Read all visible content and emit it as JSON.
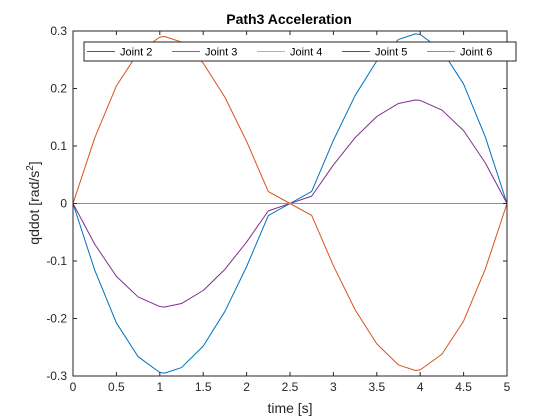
{
  "chart_data": {
    "type": "line",
    "title": "Path3 Acceleration",
    "xlabel": "time [s]",
    "ylabel_base": "qddot [rad/s",
    "ylabel_sup": "2",
    "ylabel_tail": "]",
    "xlim": [
      0,
      5
    ],
    "ylim": [
      -0.3,
      0.3
    ],
    "xticks": [
      0,
      0.5,
      1,
      1.5,
      2,
      2.5,
      3,
      3.5,
      4,
      4.5,
      5
    ],
    "xtick_labels": [
      "0",
      "0.5",
      "1",
      "1.5",
      "2",
      "2.5",
      "3",
      "3.5",
      "4",
      "4.5",
      "5"
    ],
    "yticks": [
      -0.3,
      -0.2,
      -0.1,
      0,
      0.1,
      0.2,
      0.3
    ],
    "ytick_labels": [
      "-0.3",
      "-0.2",
      "-0.1",
      "0",
      "0.1",
      "0.2",
      "0.3"
    ],
    "grid": false,
    "legend": "top, horizontal",
    "x": [
      0,
      0.25,
      0.5,
      0.75,
      1,
      1.0565,
      1.25,
      1.5,
      1.75,
      2,
      2.25,
      2.5,
      2.75,
      3,
      3.25,
      3.5,
      3.75,
      3.9435,
      4,
      4.25,
      4.5,
      4.75,
      5
    ],
    "series": [
      {
        "name": "Joint 2",
        "color": "#0072BD",
        "values": [
          0,
          -0.1158,
          -0.2077,
          -0.2664,
          -0.2939,
          -0.295,
          -0.2853,
          -0.248,
          -0.1877,
          -0.1098,
          -0.021,
          0,
          0.021,
          0.1098,
          0.1877,
          0.248,
          0.2853,
          0.295,
          0.2939,
          0.2664,
          0.2077,
          0.1158,
          0
        ]
      },
      {
        "name": "Joint 3",
        "color": "#D95319",
        "values": [
          0,
          0.114,
          0.2045,
          0.2622,
          0.2893,
          0.2904,
          0.2808,
          0.2441,
          0.1848,
          0.1081,
          0.0207,
          0,
          -0.0207,
          -0.1081,
          -0.1848,
          -0.2441,
          -0.2808,
          -0.2904,
          -0.2893,
          -0.2622,
          -0.2045,
          -0.114,
          0
        ]
      },
      {
        "name": "Joint 4",
        "color": "#EDB120",
        "values": [
          0,
          0,
          0,
          0,
          0,
          0,
          0,
          0,
          0,
          0,
          0,
          0,
          0,
          0,
          0,
          0,
          0,
          0,
          0,
          0,
          0,
          0,
          0
        ]
      },
      {
        "name": "Joint 5",
        "color": "#7E2F8E",
        "values": [
          0,
          -0.0707,
          -0.1267,
          -0.1625,
          -0.1793,
          -0.18,
          -0.174,
          -0.1513,
          -0.1145,
          -0.067,
          -0.0128,
          0,
          0.0128,
          0.067,
          0.1145,
          0.1513,
          0.174,
          0.18,
          0.1793,
          0.1625,
          0.1267,
          0.0707,
          0
        ]
      },
      {
        "name": "Joint 6",
        "color": "#77AC30",
        "values": [
          0,
          0,
          0,
          0,
          0,
          0,
          0,
          0,
          0,
          0,
          0,
          0,
          0,
          0,
          0,
          0,
          0,
          0,
          0,
          0,
          0,
          0,
          0
        ]
      }
    ]
  }
}
